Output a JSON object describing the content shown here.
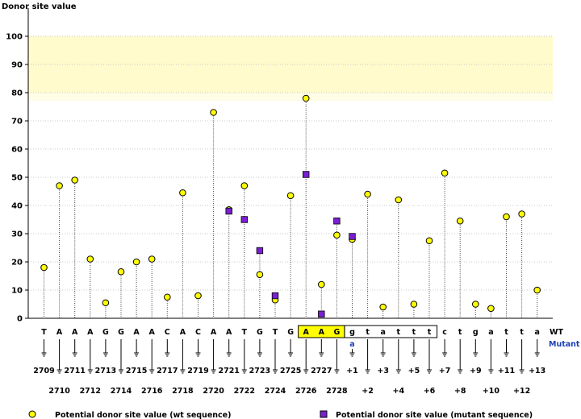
{
  "chart_data": {
    "type": "scatter",
    "title": "",
    "ylabel": "Donor site value",
    "xlabel": "",
    "ylim": [
      0,
      100
    ],
    "yticks": [
      0,
      10,
      20,
      30,
      40,
      50,
      60,
      70,
      80,
      90,
      100
    ],
    "highlight_band": [
      80,
      100
    ],
    "colors": {
      "band": "#fffbcc",
      "band_light": "#fffde6",
      "wt": "#ffff00",
      "mut": "#7a1fd1",
      "box": "#ffff00",
      "mutant_label": "#1d3fb8"
    },
    "wt_row_label": "WT",
    "mutant_row_label": "Mutant",
    "positions": [
      {
        "base": "T",
        "label": "2709",
        "wt": 18,
        "mut": null
      },
      {
        "base": "A",
        "label": "2710",
        "wt": 47,
        "mut": null
      },
      {
        "base": "A",
        "label": "2711",
        "wt": 49,
        "mut": null
      },
      {
        "base": "A",
        "label": "2712",
        "wt": 21,
        "mut": null
      },
      {
        "base": "G",
        "label": "2713",
        "wt": 5.5,
        "mut": null
      },
      {
        "base": "G",
        "label": "2714",
        "wt": 16.5,
        "mut": null
      },
      {
        "base": "A",
        "label": "2715",
        "wt": 20,
        "mut": null
      },
      {
        "base": "A",
        "label": "2716",
        "wt": 21,
        "mut": null
      },
      {
        "base": "C",
        "label": "2717",
        "wt": 7.5,
        "mut": null
      },
      {
        "base": "A",
        "label": "2718",
        "wt": 44.5,
        "mut": null
      },
      {
        "base": "C",
        "label": "2719",
        "wt": 8,
        "mut": null
      },
      {
        "base": "A",
        "label": "2720",
        "wt": 73,
        "mut": null
      },
      {
        "base": "A",
        "label": "2721",
        "wt": 38.5,
        "mut": 38
      },
      {
        "base": "T",
        "label": "2722",
        "wt": 47,
        "mut": 35
      },
      {
        "base": "G",
        "label": "2723",
        "wt": 15.5,
        "mut": 24
      },
      {
        "base": "T",
        "label": "2724",
        "wt": 6.5,
        "mut": 8
      },
      {
        "base": "G",
        "label": "2725",
        "wt": 43.5,
        "mut": null
      },
      {
        "base": "A",
        "label": "2726",
        "wt": 78,
        "mut": 51
      },
      {
        "base": "A",
        "label": "2727",
        "wt": 12,
        "mut": 1.5
      },
      {
        "base": "G",
        "label": "2728",
        "wt": 29.5,
        "mut": 34.5
      },
      {
        "base": "g",
        "label": "+1",
        "wt": 28,
        "mut": 29,
        "mutant_base": "a"
      },
      {
        "base": "t",
        "label": "+2",
        "wt": 44,
        "mut": null
      },
      {
        "base": "a",
        "label": "+3",
        "wt": 4,
        "mut": null
      },
      {
        "base": "t",
        "label": "+4",
        "wt": 42,
        "mut": null
      },
      {
        "base": "t",
        "label": "+5",
        "wt": 5,
        "mut": null
      },
      {
        "base": "t",
        "label": "+6",
        "wt": 27.5,
        "mut": null
      },
      {
        "base": "c",
        "label": "+7",
        "wt": 51.5,
        "mut": null
      },
      {
        "base": "t",
        "label": "+8",
        "wt": 34.5,
        "mut": null
      },
      {
        "base": "g",
        "label": "+9",
        "wt": 5,
        "mut": null
      },
      {
        "base": "a",
        "label": "+10",
        "wt": 3.5,
        "mut": null
      },
      {
        "base": "t",
        "label": "+11",
        "wt": 36,
        "mut": null
      },
      {
        "base": "t",
        "label": "+12",
        "wt": 37,
        "mut": null
      },
      {
        "base": "a",
        "label": "+13",
        "wt": 10,
        "mut": null
      }
    ],
    "highlight_yellow": [
      17,
      19
    ],
    "highlight_box": [
      20,
      25
    ],
    "legend": {
      "placement": "bottom",
      "wt": "Potential donor site value (wt sequence)",
      "mut": "Potential donor site value (mutant sequence)"
    }
  }
}
